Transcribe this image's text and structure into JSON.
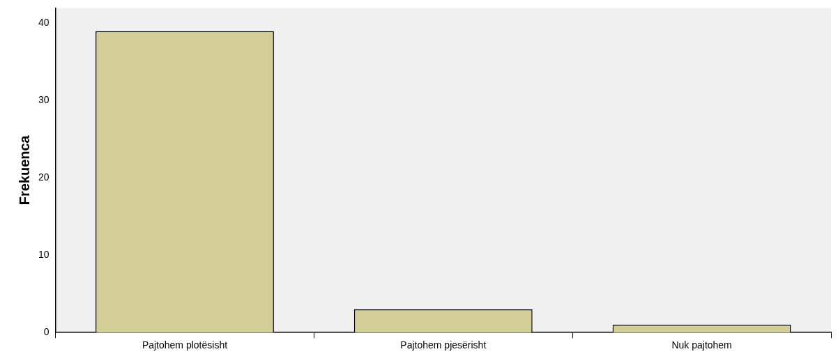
{
  "chart_data": {
    "type": "bar",
    "ylabel": "Frekuenca",
    "categories": [
      "Pajtohem plotësisht",
      "Pajtohem pjesërisht",
      "Nuk pajtohem"
    ],
    "values": [
      39,
      3,
      1
    ],
    "color": "#d3ce97",
    "ylim": [
      0,
      42
    ],
    "yticks": [
      0,
      10,
      20,
      30,
      40
    ],
    "grid": false,
    "legend": false
  }
}
